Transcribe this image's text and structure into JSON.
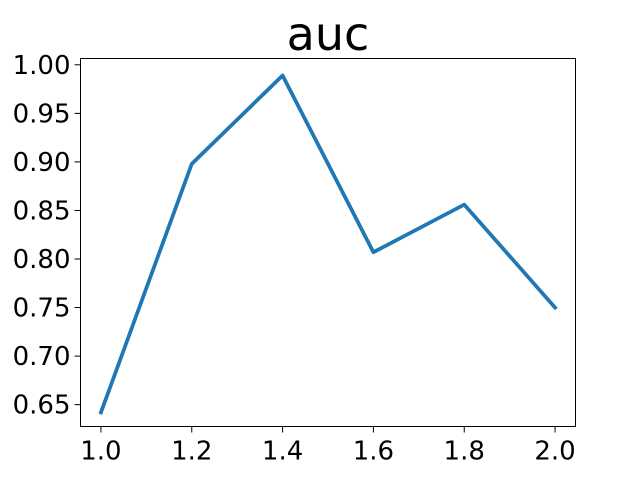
{
  "chart_data": {
    "type": "line",
    "title": "auc",
    "xlabel": "",
    "ylabel": "",
    "x": [
      1.0,
      1.2,
      1.4,
      1.6,
      1.8,
      2.0
    ],
    "series": [
      {
        "values": [
          0.642,
          0.898,
          0.989,
          0.807,
          0.856,
          0.75
        ],
        "color": "#1f77b4"
      }
    ],
    "xlim": [
      0.955,
      2.045
    ],
    "ylim": [
      0.6275,
      1.0065
    ],
    "x_ticks": [
      1.0,
      1.2,
      1.4,
      1.6,
      1.8,
      2.0
    ],
    "x_tick_labels": [
      "1.0",
      "1.2",
      "1.4",
      "1.6",
      "1.8",
      "2.0"
    ],
    "y_ticks": [
      0.65,
      0.7,
      0.75,
      0.8,
      0.85,
      0.9,
      0.95,
      1.0
    ],
    "y_tick_labels": [
      "0.65",
      "0.70",
      "0.75",
      "0.80",
      "0.85",
      "0.90",
      "0.95",
      "1.00"
    ],
    "grid": false,
    "legend": false
  }
}
